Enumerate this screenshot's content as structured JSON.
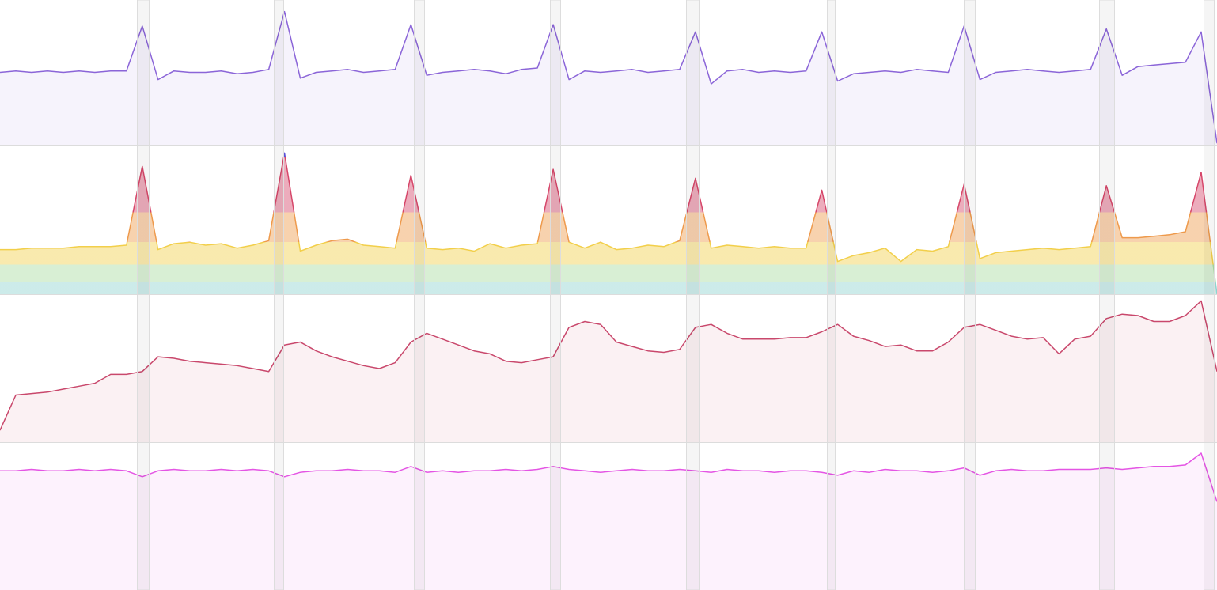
{
  "chart_data": [
    {
      "type": "area",
      "color": "#8b65d8",
      "ylim": [
        0,
        100
      ],
      "values": [
        50,
        51,
        50,
        51,
        50,
        51,
        50,
        51,
        51,
        82,
        45,
        51,
        50,
        50,
        51,
        49,
        50,
        52,
        92,
        46,
        50,
        51,
        52,
        50,
        51,
        52,
        83,
        48,
        50,
        51,
        52,
        51,
        49,
        52,
        53,
        83,
        45,
        51,
        50,
        51,
        52,
        50,
        51,
        52,
        78,
        42,
        51,
        52,
        50,
        51,
        50,
        51,
        78,
        44,
        49,
        50,
        51,
        50,
        52,
        51,
        50,
        82,
        45,
        50,
        51,
        52,
        51,
        50,
        51,
        52,
        80,
        48,
        54,
        55,
        56,
        57,
        78,
        1
      ]
    },
    {
      "type": "area",
      "band_colors": [
        "#8fd3cf",
        "#a8dba0",
        "#f2cf4a",
        "#ee9a4c",
        "#d6476a",
        "#5b50d8"
      ],
      "ylim": [
        0,
        100
      ],
      "values": [
        30,
        30,
        31,
        31,
        31,
        32,
        32,
        32,
        33,
        86,
        30,
        34,
        35,
        33,
        34,
        31,
        33,
        36,
        95,
        29,
        33,
        36,
        37,
        33,
        32,
        31,
        80,
        31,
        30,
        31,
        29,
        34,
        31,
        33,
        34,
        84,
        35,
        31,
        35,
        30,
        31,
        33,
        32,
        36,
        78,
        31,
        33,
        32,
        31,
        32,
        31,
        31,
        70,
        22,
        26,
        28,
        31,
        22,
        30,
        29,
        32,
        74,
        24,
        28,
        29,
        30,
        31,
        30,
        31,
        32,
        73,
        38,
        38,
        39,
        40,
        42,
        82,
        0
      ]
    },
    {
      "type": "area",
      "color": "#c9486c",
      "ylim": [
        0,
        100
      ],
      "values": [
        8,
        32,
        33,
        34,
        36,
        38,
        40,
        46,
        46,
        48,
        58,
        57,
        55,
        54,
        53,
        52,
        50,
        48,
        66,
        68,
        62,
        58,
        55,
        52,
        50,
        54,
        68,
        74,
        70,
        66,
        62,
        60,
        55,
        54,
        56,
        58,
        78,
        82,
        80,
        68,
        65,
        62,
        61,
        63,
        78,
        80,
        74,
        70,
        70,
        70,
        71,
        71,
        75,
        80,
        72,
        69,
        65,
        66,
        62,
        62,
        68,
        78,
        80,
        76,
        72,
        70,
        71,
        60,
        70,
        72,
        84,
        87,
        86,
        82,
        82,
        86,
        96,
        48
      ]
    },
    {
      "type": "area",
      "color": "#e455e4",
      "ylim": [
        0,
        100
      ],
      "values": [
        81,
        81,
        82,
        81,
        81,
        82,
        81,
        82,
        81,
        77,
        81,
        82,
        81,
        81,
        82,
        81,
        82,
        81,
        77,
        80,
        81,
        81,
        82,
        81,
        81,
        80,
        84,
        80,
        81,
        80,
        81,
        81,
        82,
        81,
        82,
        84,
        82,
        81,
        80,
        81,
        82,
        81,
        81,
        82,
        81,
        80,
        82,
        81,
        81,
        80,
        81,
        81,
        80,
        78,
        81,
        80,
        82,
        81,
        81,
        80,
        81,
        83,
        78,
        81,
        82,
        81,
        81,
        82,
        82,
        82,
        83,
        82,
        83,
        84,
        84,
        85,
        93,
        60
      ]
    }
  ]
}
